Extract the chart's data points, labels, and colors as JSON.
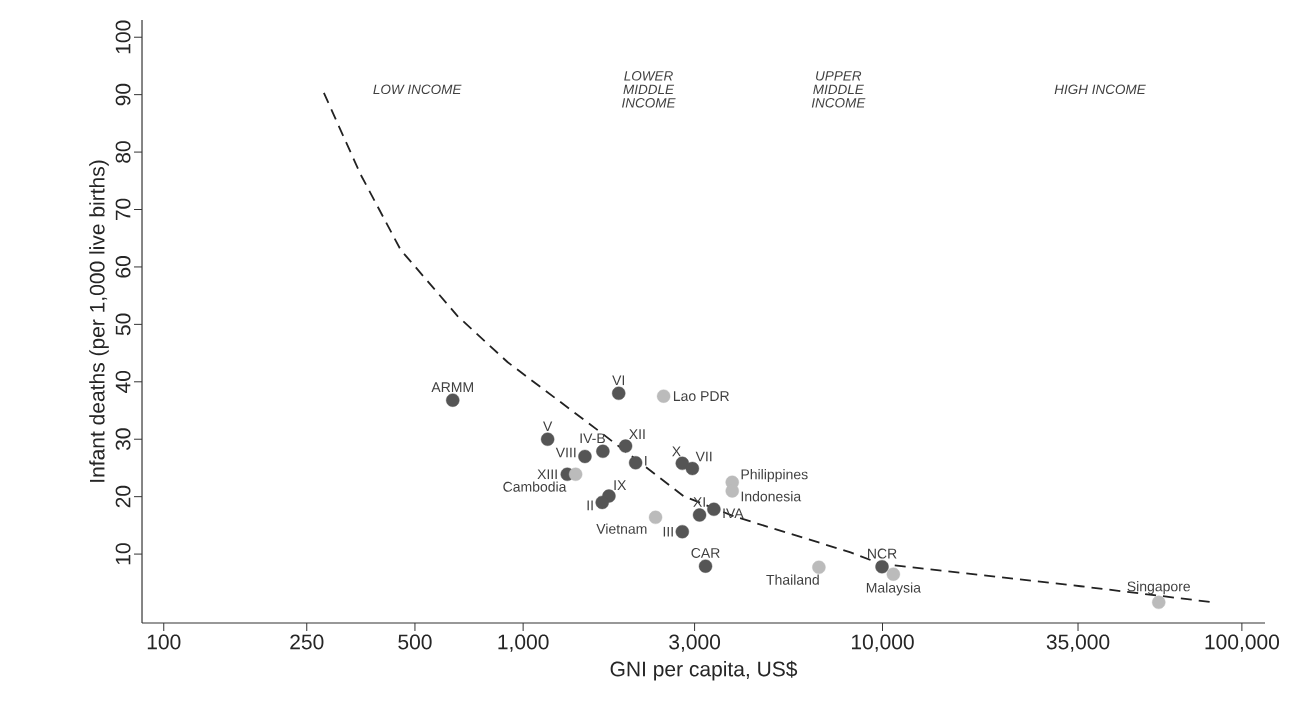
{
  "chart_data": {
    "type": "scatter",
    "xlabel": "GNI per capita, US$",
    "ylabel": "Infant deaths (per 1,000 live births)",
    "log": "x",
    "xlim": [
      87,
      116000
    ],
    "ylim": [
      -2,
      103
    ],
    "xticks": [
      100,
      250,
      500,
      {
        "value": 1000,
        "label": "1,000"
      },
      {
        "value": 3000,
        "label": "3,000"
      },
      {
        "value": 10000,
        "label": "10,000"
      },
      {
        "value": 35000,
        "label": "35,000"
      },
      {
        "value": 100000,
        "label": "100,000"
      }
    ],
    "yticks": [
      10,
      20,
      30,
      40,
      50,
      60,
      70,
      80,
      90,
      100
    ],
    "series": [
      {
        "marker": "circle",
        "color": "#555555",
        "x": [
          637,
          1845,
          1170,
          1486,
          1667,
          1928,
          2056,
          1327,
          1733,
          1660,
          2773,
          2958,
          3097,
          3395,
          2773,
          3218,
          9970
        ],
        "values": [
          36.8,
          38.0,
          30.0,
          27.0,
          27.9,
          28.8,
          25.9,
          23.9,
          20.1,
          19.0,
          25.8,
          24.9,
          16.8,
          17.8,
          13.9,
          7.9,
          7.8
        ]
      },
      {
        "marker": "circle",
        "color": "#bbbbbb",
        "x": [
          2460,
          1400,
          3819,
          3819,
          2336,
          6653,
          10720,
          58700
        ],
        "values": [
          37.5,
          23.9,
          22.5,
          21.0,
          16.4,
          7.7,
          6.5,
          1.6
        ]
      },
      {
        "type": "line",
        "marker": "none",
        "line_style": "dashed",
        "color": "#222222",
        "x": [
          279,
          353,
          456,
          658,
          906,
          1643,
          2795,
          3851,
          8150,
          9870,
          35600,
          83300
        ],
        "values": [
          90.3,
          76.1,
          63.0,
          51.4,
          43.4,
          31.2,
          20.1,
          16.6,
          10.3,
          8.3,
          4.4,
          1.6
        ]
      }
    ],
    "annotations": [
      "LOW INCOME",
      "LOWER MIDDLE INCOME",
      "UPPER MIDDLE INCOME",
      "HIGH INCOME",
      {
        "text": "ARMM",
        "x": 637,
        "y": 36.8
      },
      {
        "text": "VI",
        "x": 1845,
        "y": 38.0
      },
      {
        "text": "Lao PDR",
        "x": 2460,
        "y": 37.5
      },
      {
        "text": "V",
        "x": 1170,
        "y": 30.0
      },
      {
        "text": "VIII",
        "x": 1486,
        "y": 27.0
      },
      {
        "text": "IV-B",
        "x": 1667,
        "y": 27.9
      },
      {
        "text": "XII",
        "x": 1928,
        "y": 28.8
      },
      {
        "text": "I",
        "x": 2056,
        "y": 25.9
      },
      {
        "text": "XIII",
        "x": 1327,
        "y": 23.9
      },
      {
        "text": "Cambodia",
        "x": 1400,
        "y": 23.9
      },
      {
        "text": "IX",
        "x": 1733,
        "y": 20.1
      },
      {
        "text": "II",
        "x": 1660,
        "y": 19.0
      },
      {
        "text": "X",
        "x": 2773,
        "y": 25.8
      },
      {
        "text": "VII",
        "x": 2958,
        "y": 24.9
      },
      {
        "text": "Philippines",
        "x": 3819,
        "y": 22.5
      },
      {
        "text": "Indonesia",
        "x": 3819,
        "y": 21.0
      },
      {
        "text": "XI",
        "x": 3097,
        "y": 16.8
      },
      {
        "text": "IVA",
        "x": 3395,
        "y": 17.8
      },
      {
        "text": "III",
        "x": 2773,
        "y": 13.9
      },
      {
        "text": "Vietnam",
        "x": 2336,
        "y": 16.4
      },
      {
        "text": "CAR",
        "x": 3218,
        "y": 7.9
      },
      {
        "text": "NCR",
        "x": 9970,
        "y": 7.8
      },
      {
        "text": "Thailand",
        "x": 6653,
        "y": 7.7
      },
      {
        "text": "Malaysia",
        "x": 10720,
        "y": 6.5
      },
      {
        "text": "Singapore",
        "x": 58700,
        "y": 1.6
      }
    ]
  }
}
